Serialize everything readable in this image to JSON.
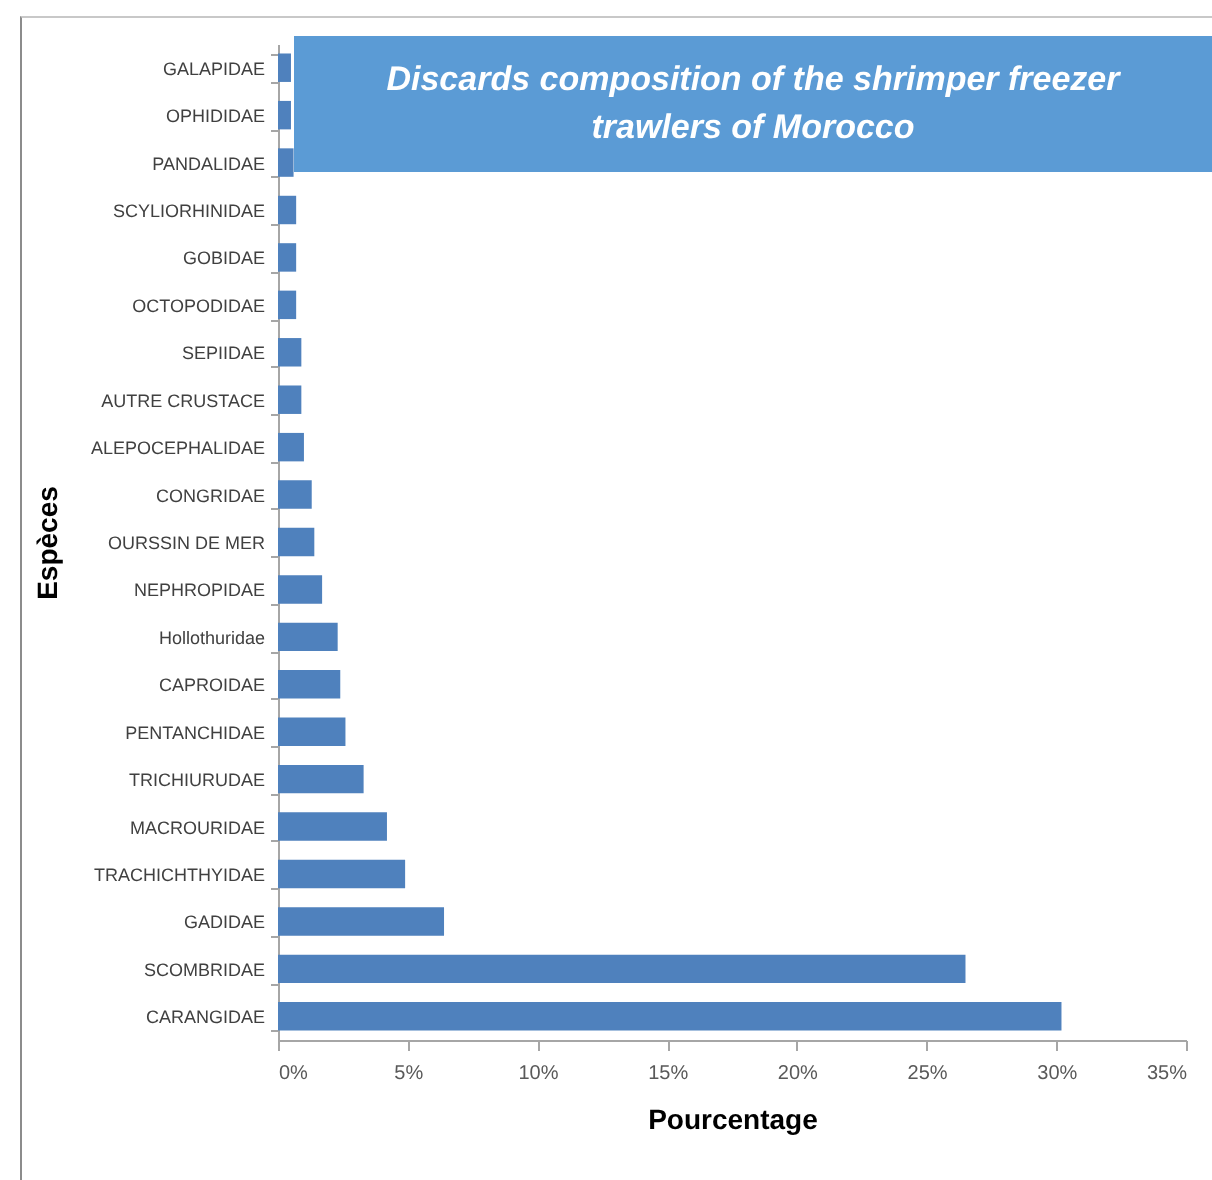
{
  "chart_data": {
    "type": "bar",
    "orientation": "horizontal",
    "title": "Discards composition of the shrimper freezer trawlers of Morocco",
    "xlabel": "Pourcentage",
    "ylabel": "Espèces",
    "categories": [
      "GALAPIDAE",
      "OPHIDIDAE",
      "PANDALIDAE",
      "SCYLIORHINIDAE",
      "GOBIDAE",
      "OCTOPODIDAE",
      "SEPIIDAE",
      "AUTRE CRUSTACE",
      "ALEPOCEPHALIDAE",
      "CONGRIDAE",
      "OURSSIN DE MER",
      "NEPHROPIDAE",
      "Hollothuridae",
      "CAPROIDAE",
      "PENTANCHIDAE",
      "TRICHIURUDAE",
      "MACROURIDAE",
      "TRACHICHTHYIDAE",
      "GADIDAE",
      "SCOMBRIDAE",
      "CARANGIDAE"
    ],
    "values": [
      0.5,
      0.5,
      0.6,
      0.7,
      0.7,
      0.7,
      0.9,
      0.9,
      1.0,
      1.3,
      1.4,
      1.7,
      2.3,
      2.4,
      2.6,
      3.3,
      4.2,
      4.9,
      6.4,
      26.5,
      30.2
    ],
    "color": "#4f81bd",
    "xlim": [
      0,
      35
    ],
    "xticks": [
      {
        "value": 0,
        "label": "0%"
      },
      {
        "value": 5,
        "label": "5%"
      },
      {
        "value": 10,
        "label": "10%"
      },
      {
        "value": 15,
        "label": "15%"
      },
      {
        "value": 20,
        "label": "20%"
      },
      {
        "value": 25,
        "label": "25%"
      },
      {
        "value": 30,
        "label": "30%"
      },
      {
        "value": 35,
        "label": "35%"
      }
    ]
  }
}
